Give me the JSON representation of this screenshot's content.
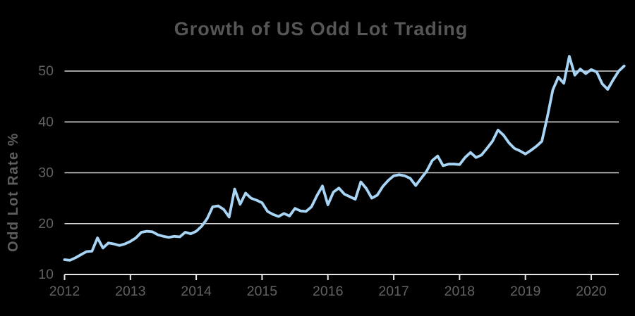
{
  "page": {
    "background": "#000000"
  },
  "colors": {
    "title": "#565656",
    "axis_labels": "#616161",
    "gridline": "#d6d6d6",
    "axis_line": "#e6e6e6",
    "line": "#a8d5f5"
  },
  "chart_data": {
    "type": "line",
    "title": "Growth of US Odd Lot Trading",
    "xlabel": "",
    "ylabel": "Odd Lot Rate %",
    "legend": "none",
    "grid": "horizontal",
    "x_tick_labels": [
      "2012",
      "2013",
      "2014",
      "2015",
      "2016",
      "2017",
      "2018",
      "2019",
      "2020"
    ],
    "x_tick_years": [
      2012,
      2013,
      2014,
      2015,
      2016,
      2017,
      2018,
      2019,
      2020
    ],
    "y_tick_labels": [
      "10",
      "20",
      "30",
      "40",
      "50"
    ],
    "y_ticks": [
      10,
      20,
      30,
      40,
      50
    ],
    "ylim": [
      10,
      55
    ],
    "xlim_years": [
      2012.0,
      2020.55
    ],
    "series": [
      {
        "name": "US odd lot rate %",
        "sampling": "monthly",
        "start": "2012-01",
        "end": "2020-07",
        "values": [
          12.9,
          12.8,
          13.3,
          13.9,
          14.5,
          14.6,
          17.2,
          15.2,
          16.2,
          16.0,
          15.7,
          16.0,
          16.5,
          17.2,
          18.3,
          18.5,
          18.4,
          17.8,
          17.5,
          17.3,
          17.5,
          17.4,
          18.3,
          18.0,
          18.5,
          19.5,
          21.0,
          23.3,
          23.5,
          22.8,
          21.3,
          26.8,
          23.8,
          26.0,
          25.0,
          24.6,
          24.1,
          22.4,
          21.8,
          21.4,
          22.0,
          21.5,
          23.0,
          22.5,
          22.4,
          23.3,
          25.5,
          27.4,
          23.7,
          26.2,
          27.0,
          25.8,
          25.3,
          24.8,
          28.2,
          26.9,
          25.0,
          25.6,
          27.3,
          28.5,
          29.4,
          29.6,
          29.4,
          28.9,
          27.5,
          28.9,
          30.3,
          32.4,
          33.3,
          31.4,
          31.7,
          31.7,
          31.6,
          33.0,
          34.0,
          33.0,
          33.5,
          34.8,
          36.2,
          38.4,
          37.4,
          35.9,
          34.8,
          34.3,
          33.7,
          34.4,
          35.2,
          36.2,
          41.0,
          46.3,
          48.8,
          47.6,
          52.9,
          49.2,
          50.4,
          49.5,
          50.3,
          49.8,
          47.5,
          46.4,
          48.3,
          50.0,
          51.0
        ]
      }
    ]
  }
}
